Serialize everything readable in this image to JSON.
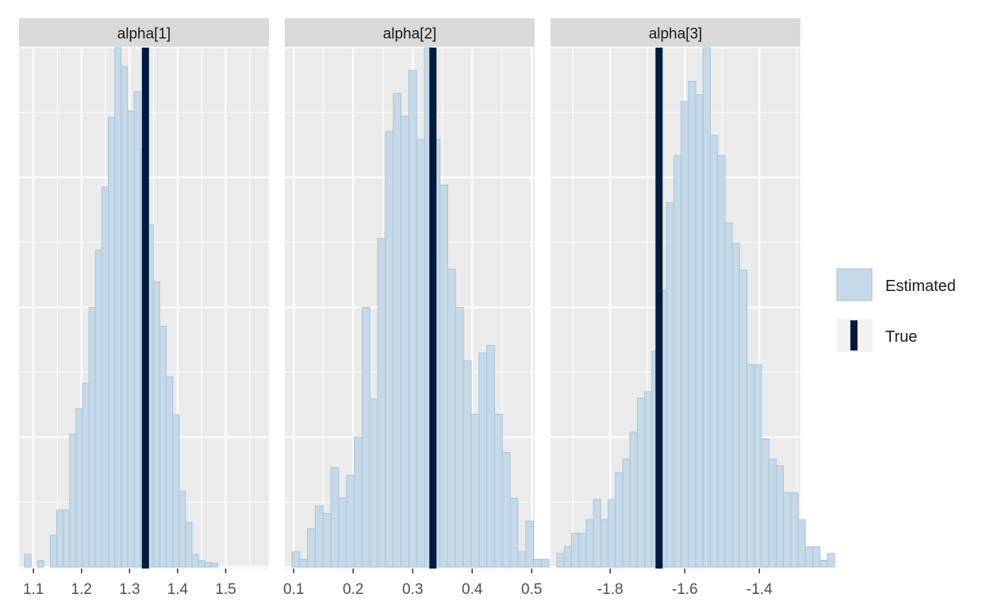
{
  "colors": {
    "panel_bg": "#ebebeb",
    "grid": "#ffffff",
    "strip_bg": "#d9d9d9",
    "bar_fill": "#c6d9e8",
    "bar_stroke": "#a6c4dd",
    "true_line": "#021a3d",
    "tick": "#4d4d4d"
  },
  "legend": {
    "position": "right",
    "items": [
      {
        "label": "Estimated",
        "kind": "fill"
      },
      {
        "label": "True",
        "kind": "line"
      }
    ]
  },
  "chart_data": [
    {
      "type": "bar",
      "title": "alpha[1]",
      "xlim": [
        1.07,
        1.59
      ],
      "xticks": [
        1.1,
        1.2,
        1.3,
        1.4,
        1.5
      ],
      "tick_labels": [
        "1.1",
        "1.2",
        "1.3",
        "1.4",
        "1.5"
      ],
      "true_value": 1.333,
      "bin_start": 1.0815,
      "bin_width": 0.0134,
      "counts": [
        2,
        0,
        1,
        0,
        5,
        9,
        9,
        21,
        25,
        29,
        41,
        50,
        60,
        71,
        82,
        79,
        72,
        75,
        66,
        54,
        45,
        38,
        30,
        24,
        12,
        7,
        2,
        1,
        0.7,
        0.6
      ]
    },
    {
      "type": "bar",
      "title": "alpha[2]",
      "xlim": [
        0.085,
        0.505
      ],
      "xticks": [
        0.1,
        0.2,
        0.3,
        0.4,
        0.5
      ],
      "tick_labels": [
        "0.1",
        "0.2",
        "0.3",
        "0.4",
        "0.5"
      ],
      "true_value": 0.334,
      "bin_start": 0.097,
      "bin_width": 0.0131,
      "counts": [
        2,
        1,
        5,
        8,
        7,
        13,
        9,
        12,
        17,
        34,
        22,
        43,
        57,
        62,
        59,
        65,
        56,
        68,
        56,
        50,
        39,
        34,
        27,
        20,
        28,
        29,
        20,
        15,
        9,
        2,
        6,
        1,
        1
      ]
    },
    {
      "type": "bar",
      "title": "alpha[3]",
      "xlim": [
        -1.96,
        -1.29
      ],
      "xticks": [
        -1.8,
        -1.6,
        -1.4
      ],
      "tick_labels": [
        "-1.8",
        "-1.6",
        "-1.4"
      ],
      "true_value": -1.669,
      "bin_start": -1.943,
      "bin_width": 0.0196,
      "counts": [
        2,
        3,
        5,
        5,
        7,
        10,
        7,
        10,
        14,
        16,
        20,
        25,
        26,
        32,
        41,
        54,
        61,
        69,
        72,
        70,
        77,
        64,
        61,
        51,
        48,
        44,
        30,
        30,
        19,
        16,
        15,
        11,
        11,
        7,
        3,
        3,
        1,
        2
      ]
    }
  ]
}
